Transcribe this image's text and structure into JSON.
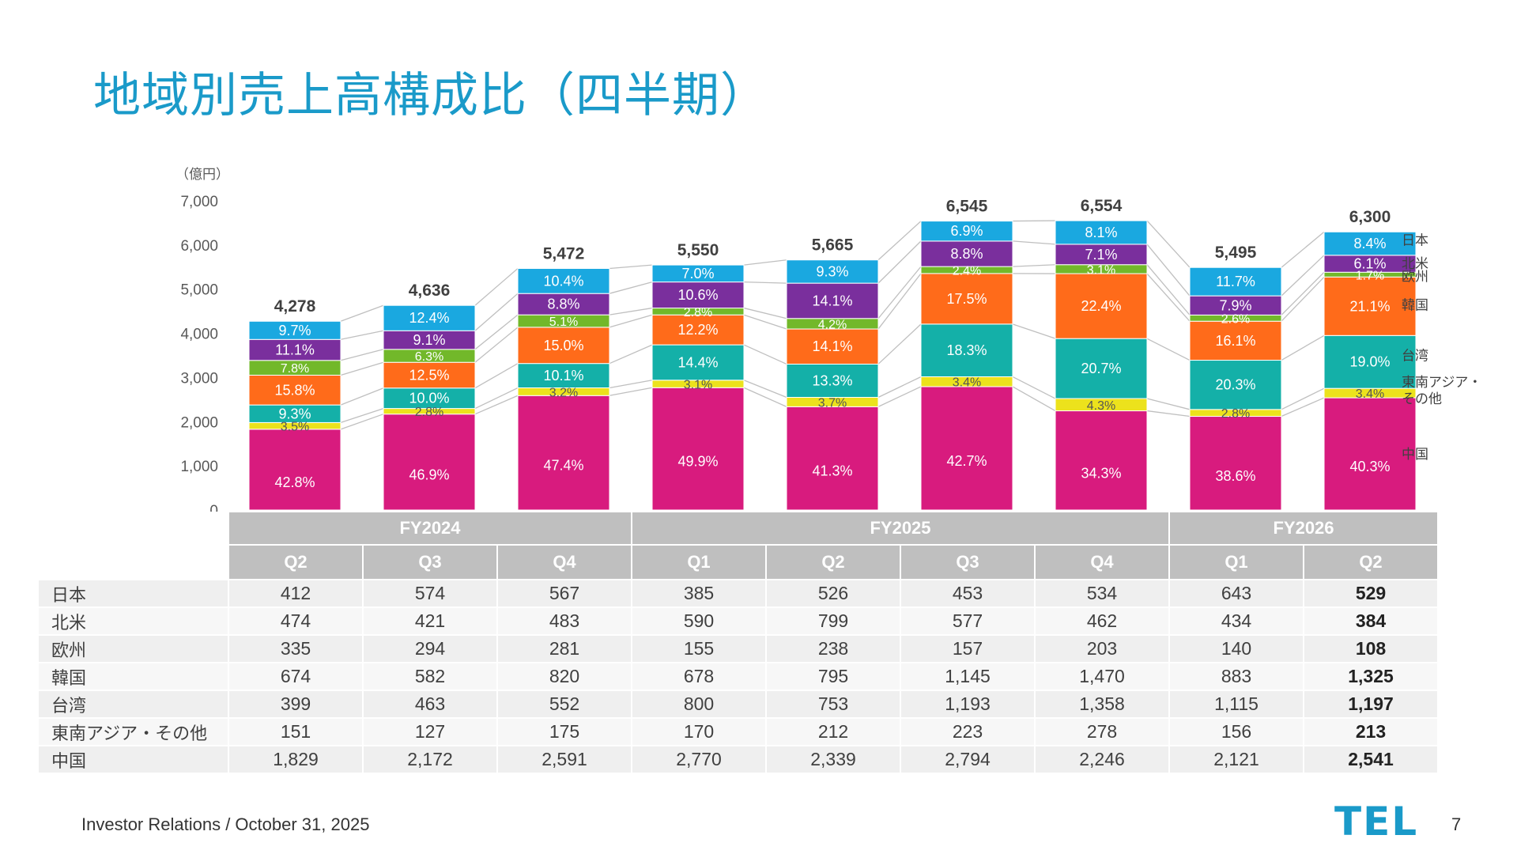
{
  "title": "地域別売上高構成比（四半期）",
  "footer": {
    "text": "Investor Relations / October 31, 2025",
    "page_number": "7",
    "logo": "TEL"
  },
  "colors": {
    "中国": "#d81b7e",
    "東南アジア・その他": "#ece21c",
    "台湾": "#14b0a8",
    "韓国": "#ff6b1a",
    "欧州": "#72b82a",
    "北米": "#7a2f9d",
    "日本": "#1aa8e0",
    "table_header": "#bfbfbf",
    "connector": "#bfbfbf"
  },
  "chart_data": {
    "type": "bar",
    "stacked": true,
    "unit_label": "（億円）",
    "ylim": [
      0,
      7000
    ],
    "yticks": [
      "0",
      "1,000",
      "2,000",
      "3,000",
      "4,000",
      "5,000",
      "6,000",
      "7,000"
    ],
    "ytick_values": [
      0,
      1000,
      2000,
      3000,
      4000,
      5000,
      6000,
      7000
    ],
    "fiscal_years": [
      {
        "label": "FY2024",
        "span": 3
      },
      {
        "label": "FY2025",
        "span": 4
      },
      {
        "label": "FY2026",
        "span": 2
      }
    ],
    "categories": [
      "Q2",
      "Q3",
      "Q4",
      "Q1",
      "Q2",
      "Q3",
      "Q4",
      "Q1",
      "Q2"
    ],
    "totals": [
      4278,
      4636,
      5472,
      5550,
      5665,
      6545,
      6554,
      5495,
      6300
    ],
    "total_labels": [
      "4,278",
      "4,636",
      "5,472",
      "5,550",
      "5,665",
      "6,545",
      "6,554",
      "5,495",
      "6,300"
    ],
    "series": [
      {
        "name": "中国",
        "legend": "中国",
        "values": [
          1829,
          2172,
          2591,
          2770,
          2339,
          2794,
          2246,
          2121,
          2541
        ],
        "value_labels": [
          "1,829",
          "2,172",
          "2,591",
          "2,770",
          "2,339",
          "2,794",
          "2,246",
          "2,121",
          "2,541"
        ],
        "pct_labels": [
          "42.8%",
          "46.9%",
          "47.4%",
          "49.9%",
          "41.3%",
          "42.7%",
          "34.3%",
          "38.6%",
          "40.3%"
        ]
      },
      {
        "name": "東南アジア・その他",
        "legend": "東南アジア・その他",
        "values": [
          151,
          127,
          175,
          170,
          212,
          223,
          278,
          156,
          213
        ],
        "value_labels": [
          "151",
          "127",
          "175",
          "170",
          "212",
          "223",
          "278",
          "156",
          "213"
        ],
        "pct_labels": [
          "3.5%",
          "2.8%",
          "3.2%",
          "3.1%",
          "3.7%",
          "3.4%",
          "4.3%",
          "2.8%",
          "3.4%"
        ]
      },
      {
        "name": "台湾",
        "legend": "台湾",
        "values": [
          399,
          463,
          552,
          800,
          753,
          1193,
          1358,
          1115,
          1197
        ],
        "value_labels": [
          "399",
          "463",
          "552",
          "800",
          "753",
          "1,193",
          "1,358",
          "1,115",
          "1,197"
        ],
        "pct_labels": [
          "9.3%",
          "10.0%",
          "10.1%",
          "14.4%",
          "13.3%",
          "18.3%",
          "20.7%",
          "20.3%",
          "19.0%"
        ]
      },
      {
        "name": "韓国",
        "legend": "韓国",
        "values": [
          674,
          582,
          820,
          678,
          795,
          1145,
          1470,
          883,
          1325
        ],
        "value_labels": [
          "674",
          "582",
          "820",
          "678",
          "795",
          "1,145",
          "1,470",
          "883",
          "1,325"
        ],
        "pct_labels": [
          "15.8%",
          "12.5%",
          "15.0%",
          "12.2%",
          "14.1%",
          "17.5%",
          "22.4%",
          "16.1%",
          "21.1%"
        ]
      },
      {
        "name": "欧州",
        "legend": "欧州",
        "values": [
          335,
          294,
          281,
          155,
          238,
          157,
          203,
          140,
          108
        ],
        "value_labels": [
          "335",
          "294",
          "281",
          "155",
          "238",
          "157",
          "203",
          "140",
          "108"
        ],
        "pct_labels": [
          "7.8%",
          "6.3%",
          "5.1%",
          "2.8%",
          "4.2%",
          "2.4%",
          "3.1%",
          "2.6%",
          "1.7%"
        ]
      },
      {
        "name": "北米",
        "legend": "北米",
        "values": [
          474,
          421,
          483,
          590,
          799,
          577,
          462,
          434,
          384
        ],
        "value_labels": [
          "474",
          "421",
          "483",
          "590",
          "799",
          "577",
          "462",
          "434",
          "384"
        ],
        "pct_labels": [
          "11.1%",
          "9.1%",
          "8.8%",
          "10.6%",
          "14.1%",
          "8.8%",
          "7.1%",
          "7.9%",
          "6.1%"
        ]
      },
      {
        "name": "日本",
        "legend": "日本",
        "values": [
          412,
          574,
          567,
          385,
          526,
          453,
          534,
          643,
          529
        ],
        "value_labels": [
          "412",
          "574",
          "567",
          "385",
          "526",
          "453",
          "534",
          "643",
          "529"
        ],
        "pct_labels": [
          "9.7%",
          "12.4%",
          "10.4%",
          "7.0%",
          "9.3%",
          "6.9%",
          "8.1%",
          "11.7%",
          "8.4%"
        ]
      }
    ],
    "table_row_order": [
      "日本",
      "北米",
      "欧州",
      "韓国",
      "台湾",
      "東南アジア・その他",
      "中国"
    ]
  }
}
